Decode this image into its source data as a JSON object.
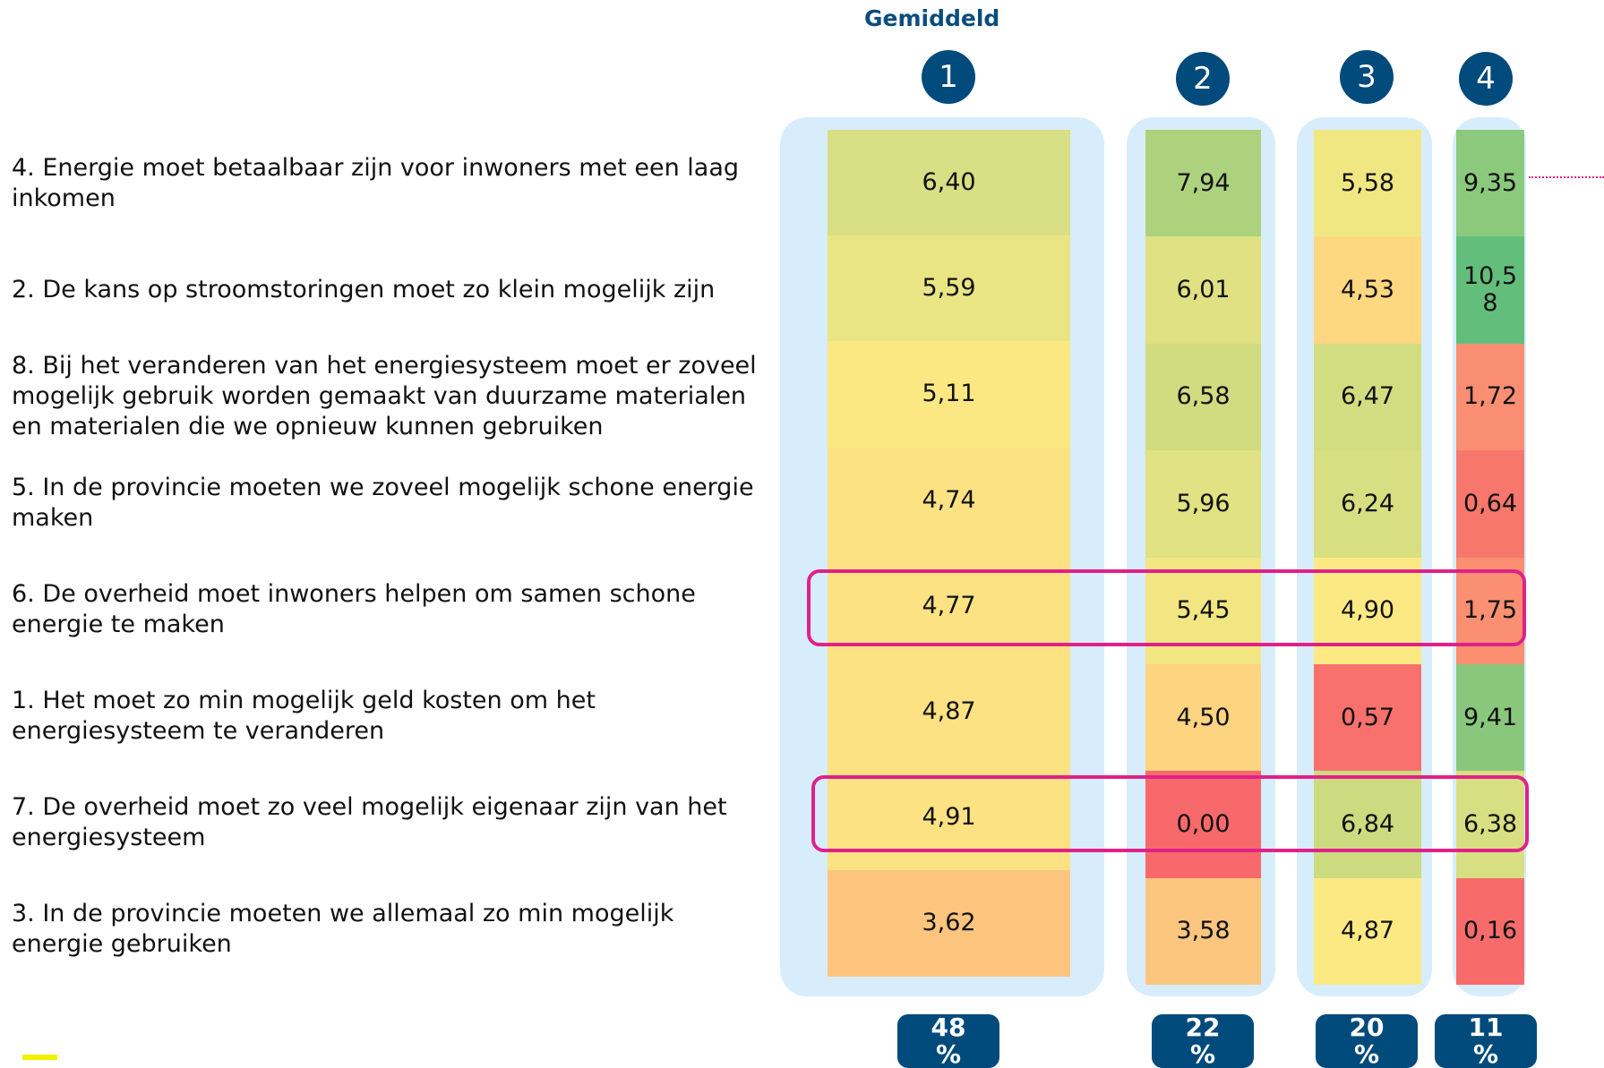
{
  "header": {
    "title": "Gemiddeld"
  },
  "rows": [
    "4. Energie moet betaalbaar zijn voor inwoners met een laag inkomen",
    "2. De kans op stroomstoringen moet zo klein mogelijk zijn",
    "8. Bij het veranderen van het energiesysteem moet er zoveel mogelijk gebruik worden gemaakt van duurzame materialen en materialen die we opnieuw kunnen gebruiken",
    "5. In de provincie moeten we zoveel mogelijk schone energie maken",
    "6. De overheid moet inwoners helpen om samen schone energie te maken",
    "1. Het moet zo min mogelijk geld kosten om het energiesysteem te veranderen",
    "7. De overheid moet zo veel mogelijk eigenaar zijn van het energiesysteem",
    "3. In de provincie moeten we allemaal zo min mogelijk energie gebruiken"
  ],
  "columns": [
    {
      "number": "1",
      "share": "48 %",
      "cells": [
        "6,40",
        "5,59",
        "5,11",
        "4,74",
        "4,77",
        "4,87",
        "4,91",
        "3,62"
      ],
      "colors": [
        "#d9df84",
        "#e9e584",
        "#fce883",
        "#fde283",
        "#fde283",
        "#fde283",
        "#fde283",
        "#fdc57e"
      ]
    },
    {
      "number": "2",
      "share": "22 %",
      "cells": [
        "7,94",
        "6,01",
        "6,58",
        "5,96",
        "5,45",
        "4,50",
        "0,00",
        "3,58"
      ],
      "colors": [
        "#acd27e",
        "#dfe183",
        "#d1dc80",
        "#e0e283",
        "#f2e683",
        "#fdd47f",
        "#f8696b",
        "#fdc67e"
      ]
    },
    {
      "number": "3",
      "share": "20 %",
      "cells": [
        "5,58",
        "4,53",
        "6,47",
        "6,24",
        "4,90",
        "0,57",
        "6,84",
        "4,87"
      ],
      "colors": [
        "#f0e783",
        "#fdd880",
        "#d2dd81",
        "#d8df82",
        "#fde983",
        "#f8716c",
        "#ccdb80",
        "#fde983"
      ]
    },
    {
      "number": "4",
      "share": "11 %",
      "cells": [
        "9,35",
        "10,58",
        "1,72",
        "0,64",
        "1,75",
        "9,41",
        "6,38",
        "0,16"
      ],
      "colors": [
        "#8bc97d",
        "#63be7b",
        "#fa8e72",
        "#f8776d",
        "#fa8f72",
        "#89c87c",
        "#d8df82",
        "#f86b6b"
      ]
    }
  ]
}
